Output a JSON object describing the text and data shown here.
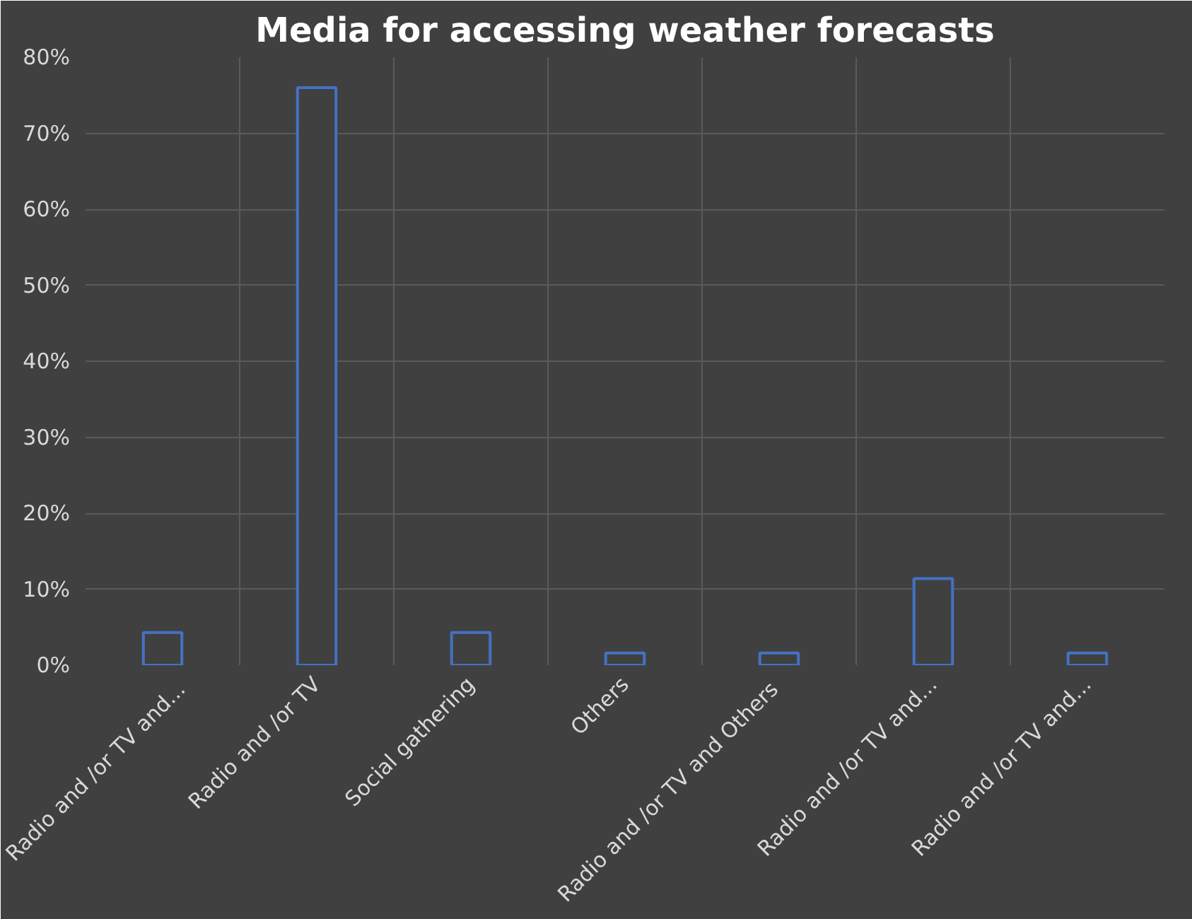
{
  "chart_data": {
    "type": "bar",
    "title": "Media for accessing weather forecasts",
    "categories": [
      "Radio and /or TV  and...",
      "Radio and /or TV",
      "Social gathering",
      "Others",
      "Radio and /or TV and  Others",
      "Radio and /or TV and...",
      "Radio and /or TV and..."
    ],
    "values": [
      4.3,
      76,
      4.3,
      1.6,
      1.6,
      11.4,
      1.6
    ],
    "color": "#4472c4",
    "ylim": [
      0,
      80
    ],
    "yticks": [
      {
        "value": 0,
        "label": "0%"
      },
      {
        "value": 10,
        "label": "10%"
      },
      {
        "value": 20,
        "label": "20%"
      },
      {
        "value": 30,
        "label": "30%"
      },
      {
        "value": 40,
        "label": "40%"
      },
      {
        "value": 50,
        "label": "50%"
      },
      {
        "value": 60,
        "label": "60%"
      },
      {
        "value": 70,
        "label": "70%"
      },
      {
        "value": 80,
        "label": "80%"
      }
    ],
    "grid": true
  }
}
